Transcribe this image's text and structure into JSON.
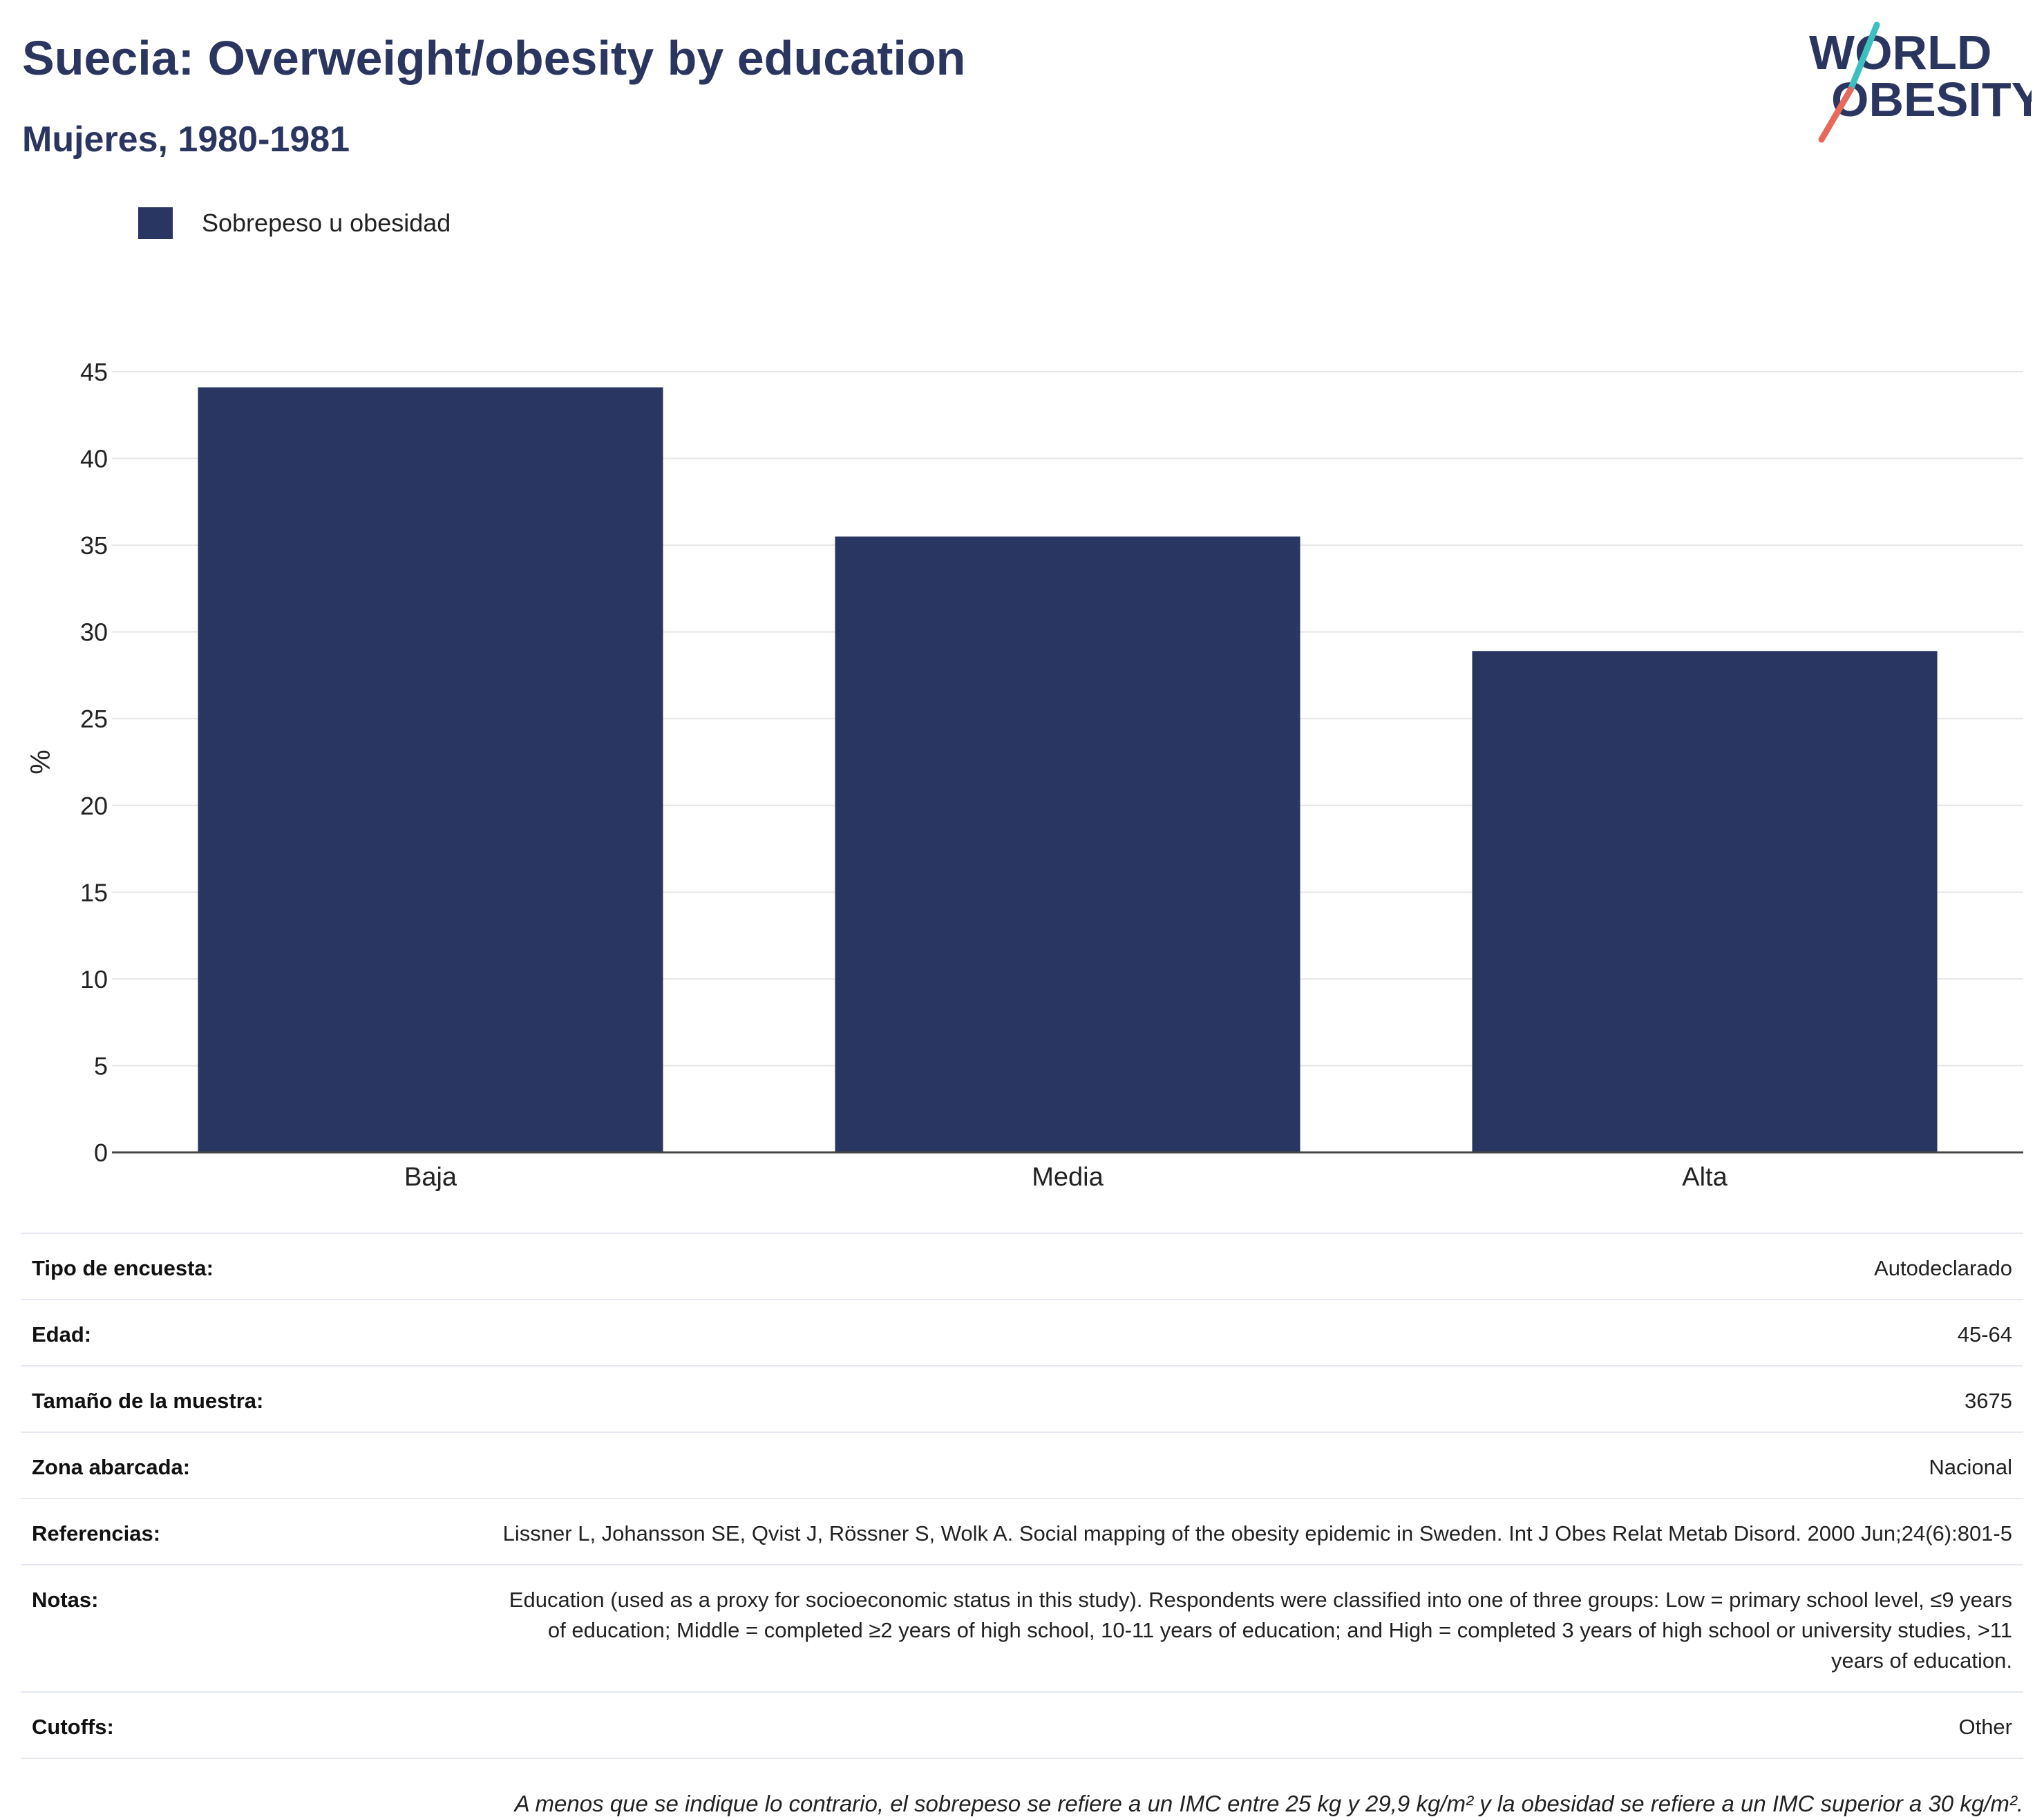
{
  "header": {
    "title": "Suecia: Overweight/obesity by education",
    "subtitle": "Mujeres, 1980-1981",
    "logo_line1": "WORLD",
    "logo_line2": "OBESITY"
  },
  "legend": {
    "label": "Sobrepeso u obesidad",
    "color": "#2a3662"
  },
  "chart_data": {
    "type": "bar",
    "categories": [
      "Baja",
      "Media",
      "Alta"
    ],
    "series": [
      {
        "name": "Sobrepeso u obesidad",
        "values": [
          44.1,
          35.5,
          28.9
        ],
        "color": "#2a3662"
      }
    ],
    "ylabel": "%",
    "xlabel": "",
    "ylim": [
      0,
      45
    ],
    "yticks": [
      0,
      5,
      10,
      15,
      20,
      25,
      30,
      35,
      40,
      45
    ],
    "grid": true,
    "legend_position": "top-left"
  },
  "info": {
    "rows": [
      {
        "label": "Tipo de encuesta:",
        "value": "Autodeclarado"
      },
      {
        "label": "Edad:",
        "value": "45-64"
      },
      {
        "label": "Tamaño de la muestra:",
        "value": "3675"
      },
      {
        "label": "Zona abarcada:",
        "value": "Nacional"
      },
      {
        "label": "Referencias:",
        "value": "Lissner L, Johansson SE, Qvist J, Rössner S, Wolk A. Social mapping of the obesity epidemic in Sweden. Int J Obes Relat Metab Disord. 2000 Jun;24(6):801-5"
      },
      {
        "label": "Notas:",
        "value": "Education (used as a proxy for socioeconomic status in this study). Respondents were classified into one of three groups: Low = primary school level, ≤9 years of education; Middle = completed ≥2 years of high school, 10-11 years of education; and High = completed 3 years of high school or university studies, >11 years of education."
      },
      {
        "label": "Cutoffs:",
        "value": "Other"
      }
    ],
    "footnote": "A menos que se indique lo contrario, el sobrepeso se refiere a un IMC entre 25 kg y 29,9 kg/m² y la obesidad se refiere a un IMC superior a 30 kg/m²."
  },
  "colors": {
    "navy": "#2a3662",
    "title": "#2a3560",
    "logo_teal": "#3bbfbf",
    "logo_coral": "#e8685a"
  }
}
